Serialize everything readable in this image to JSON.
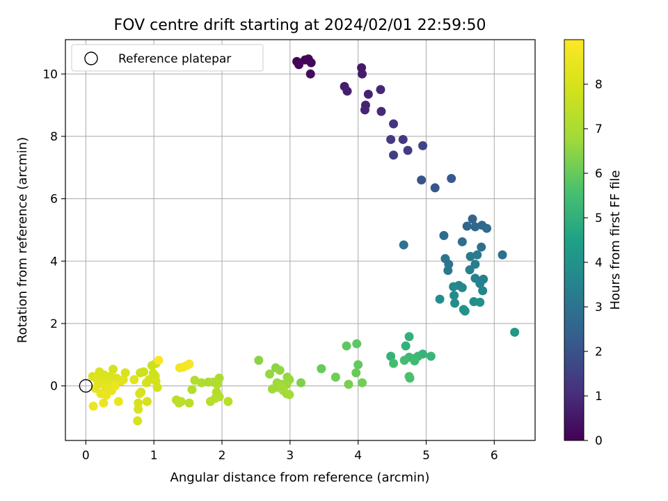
{
  "chart_data": {
    "type": "scatter",
    "title": "FOV centre drift starting at 2024/02/01 22:59:50",
    "xlabel": "Angular distance from reference (arcmin)",
    "ylabel": "Rotation from reference (arcmin)",
    "xlim": [
      -0.3,
      6.6
    ],
    "ylim": [
      -1.75,
      11.1
    ],
    "xticks": [
      0,
      1,
      2,
      3,
      4,
      5,
      6
    ],
    "yticks": [
      0,
      2,
      4,
      6,
      8,
      10
    ],
    "grid": true,
    "legend": {
      "placement": "upper-left",
      "entries": [
        "Reference platepar"
      ]
    },
    "reference_point": {
      "x": 0,
      "y": 0
    },
    "colorbar": {
      "label": "Hours from first FF file",
      "range": [
        0,
        9.0
      ],
      "ticks": [
        0,
        1,
        2,
        3,
        4,
        5,
        6,
        7,
        8
      ],
      "colormap": "viridis"
    },
    "points": [
      {
        "x": 3.1,
        "y": 10.4,
        "h": 0.05
      },
      {
        "x": 3.13,
        "y": 10.3,
        "h": 0.08
      },
      {
        "x": 3.22,
        "y": 10.45,
        "h": 0.1
      },
      {
        "x": 3.27,
        "y": 10.48,
        "h": 0.12
      },
      {
        "x": 3.31,
        "y": 10.36,
        "h": 0.15
      },
      {
        "x": 3.3,
        "y": 10.0,
        "h": 0.2
      },
      {
        "x": 4.05,
        "y": 10.2,
        "h": 0.55
      },
      {
        "x": 4.06,
        "y": 10.0,
        "h": 0.6
      },
      {
        "x": 3.8,
        "y": 9.6,
        "h": 0.65
      },
      {
        "x": 3.84,
        "y": 9.45,
        "h": 0.7
      },
      {
        "x": 4.15,
        "y": 9.35,
        "h": 0.75
      },
      {
        "x": 4.11,
        "y": 9.0,
        "h": 0.8
      },
      {
        "x": 4.1,
        "y": 8.85,
        "h": 0.85
      },
      {
        "x": 4.33,
        "y": 9.5,
        "h": 0.9
      },
      {
        "x": 4.34,
        "y": 8.8,
        "h": 0.95
      },
      {
        "x": 4.52,
        "y": 8.4,
        "h": 1.2
      },
      {
        "x": 4.66,
        "y": 7.9,
        "h": 1.3
      },
      {
        "x": 4.48,
        "y": 7.9,
        "h": 1.35
      },
      {
        "x": 4.73,
        "y": 7.55,
        "h": 1.4
      },
      {
        "x": 4.52,
        "y": 7.4,
        "h": 1.5
      },
      {
        "x": 4.95,
        "y": 7.7,
        "h": 1.6
      },
      {
        "x": 4.93,
        "y": 6.6,
        "h": 2.0
      },
      {
        "x": 5.13,
        "y": 6.35,
        "h": 2.1
      },
      {
        "x": 5.37,
        "y": 6.65,
        "h": 2.2
      },
      {
        "x": 5.68,
        "y": 5.35,
        "h": 2.5
      },
      {
        "x": 5.6,
        "y": 5.12,
        "h": 2.55
      },
      {
        "x": 5.72,
        "y": 5.1,
        "h": 2.6
      },
      {
        "x": 5.82,
        "y": 5.15,
        "h": 2.65
      },
      {
        "x": 5.89,
        "y": 5.05,
        "h": 2.7
      },
      {
        "x": 5.26,
        "y": 4.82,
        "h": 2.75
      },
      {
        "x": 5.53,
        "y": 4.62,
        "h": 2.8
      },
      {
        "x": 5.81,
        "y": 4.45,
        "h": 2.85
      },
      {
        "x": 6.12,
        "y": 4.2,
        "h": 2.9
      },
      {
        "x": 4.67,
        "y": 4.52,
        "h": 2.95
      },
      {
        "x": 5.28,
        "y": 4.08,
        "h": 3.05
      },
      {
        "x": 5.33,
        "y": 3.9,
        "h": 3.1
      },
      {
        "x": 5.32,
        "y": 3.7,
        "h": 3.15
      },
      {
        "x": 5.65,
        "y": 4.15,
        "h": 3.2
      },
      {
        "x": 5.75,
        "y": 4.2,
        "h": 3.25
      },
      {
        "x": 5.72,
        "y": 3.9,
        "h": 3.3
      },
      {
        "x": 5.64,
        "y": 3.72,
        "h": 3.35
      },
      {
        "x": 5.72,
        "y": 3.45,
        "h": 3.4
      },
      {
        "x": 5.84,
        "y": 3.42,
        "h": 3.45
      },
      {
        "x": 5.79,
        "y": 3.28,
        "h": 3.5
      },
      {
        "x": 5.83,
        "y": 3.05,
        "h": 3.55
      },
      {
        "x": 5.48,
        "y": 3.22,
        "h": 3.6
      },
      {
        "x": 5.53,
        "y": 3.15,
        "h": 3.65
      },
      {
        "x": 5.4,
        "y": 3.18,
        "h": 3.7
      },
      {
        "x": 5.41,
        "y": 2.9,
        "h": 3.75
      },
      {
        "x": 5.2,
        "y": 2.78,
        "h": 3.8
      },
      {
        "x": 5.42,
        "y": 2.65,
        "h": 3.85
      },
      {
        "x": 5.7,
        "y": 2.7,
        "h": 3.9
      },
      {
        "x": 5.79,
        "y": 2.68,
        "h": 3.95
      },
      {
        "x": 5.57,
        "y": 2.4,
        "h": 4.0
      },
      {
        "x": 5.55,
        "y": 2.45,
        "h": 4.05
      },
      {
        "x": 6.3,
        "y": 1.72,
        "h": 4.2
      },
      {
        "x": 4.75,
        "y": 1.58,
        "h": 5.0
      },
      {
        "x": 4.7,
        "y": 1.28,
        "h": 5.05
      },
      {
        "x": 4.48,
        "y": 0.95,
        "h": 5.1
      },
      {
        "x": 4.95,
        "y": 1.02,
        "h": 5.15
      },
      {
        "x": 5.07,
        "y": 0.95,
        "h": 5.2
      },
      {
        "x": 4.88,
        "y": 0.95,
        "h": 5.25
      },
      {
        "x": 4.83,
        "y": 0.88,
        "h": 5.3
      },
      {
        "x": 4.75,
        "y": 0.92,
        "h": 5.35
      },
      {
        "x": 4.83,
        "y": 0.8,
        "h": 5.4
      },
      {
        "x": 4.68,
        "y": 0.82,
        "h": 5.45
      },
      {
        "x": 4.52,
        "y": 0.72,
        "h": 5.5
      },
      {
        "x": 4.75,
        "y": 0.3,
        "h": 5.55
      },
      {
        "x": 4.76,
        "y": 0.25,
        "h": 5.6
      },
      {
        "x": 3.98,
        "y": 1.35,
        "h": 5.85
      },
      {
        "x": 3.83,
        "y": 1.28,
        "h": 5.9
      },
      {
        "x": 4.0,
        "y": 0.68,
        "h": 5.95
      },
      {
        "x": 3.46,
        "y": 0.55,
        "h": 6.0
      },
      {
        "x": 3.97,
        "y": 0.42,
        "h": 6.05
      },
      {
        "x": 3.67,
        "y": 0.28,
        "h": 6.1
      },
      {
        "x": 4.06,
        "y": 0.1,
        "h": 6.15
      },
      {
        "x": 3.86,
        "y": 0.05,
        "h": 6.2
      },
      {
        "x": 3.16,
        "y": 0.1,
        "h": 6.3
      },
      {
        "x": 2.54,
        "y": 0.82,
        "h": 6.45
      },
      {
        "x": 2.79,
        "y": 0.58,
        "h": 6.5
      },
      {
        "x": 2.85,
        "y": 0.5,
        "h": 6.55
      },
      {
        "x": 2.7,
        "y": 0.38,
        "h": 6.6
      },
      {
        "x": 2.96,
        "y": 0.28,
        "h": 6.62
      },
      {
        "x": 2.99,
        "y": 0.2,
        "h": 6.65
      },
      {
        "x": 2.88,
        "y": 0.05,
        "h": 6.68
      },
      {
        "x": 2.81,
        "y": 0.1,
        "h": 6.7
      },
      {
        "x": 2.95,
        "y": 0.05,
        "h": 6.72
      },
      {
        "x": 2.82,
        "y": -0.05,
        "h": 6.75
      },
      {
        "x": 2.74,
        "y": -0.1,
        "h": 6.78
      },
      {
        "x": 2.9,
        "y": -0.15,
        "h": 6.8
      },
      {
        "x": 2.95,
        "y": -0.25,
        "h": 6.82
      },
      {
        "x": 2.99,
        "y": -0.28,
        "h": 6.85
      },
      {
        "x": 2.88,
        "y": -0.05,
        "h": 6.87
      },
      {
        "x": 1.96,
        "y": 0.25,
        "h": 7.0
      },
      {
        "x": 1.8,
        "y": 0.12,
        "h": 7.05
      },
      {
        "x": 1.87,
        "y": 0.12,
        "h": 7.08
      },
      {
        "x": 1.7,
        "y": 0.1,
        "h": 7.1
      },
      {
        "x": 1.6,
        "y": 0.18,
        "h": 7.12
      },
      {
        "x": 1.93,
        "y": 0.05,
        "h": 7.15
      },
      {
        "x": 1.92,
        "y": -0.2,
        "h": 7.18
      },
      {
        "x": 1.56,
        "y": -0.12,
        "h": 7.2
      },
      {
        "x": 1.96,
        "y": -0.35,
        "h": 7.22
      },
      {
        "x": 1.83,
        "y": -0.5,
        "h": 7.25
      },
      {
        "x": 1.9,
        "y": -0.4,
        "h": 7.28
      },
      {
        "x": 2.09,
        "y": -0.5,
        "h": 7.3
      },
      {
        "x": 1.52,
        "y": -0.55,
        "h": 7.32
      },
      {
        "x": 1.4,
        "y": -0.5,
        "h": 7.35
      },
      {
        "x": 1.33,
        "y": -0.45,
        "h": 7.38
      },
      {
        "x": 1.37,
        "y": -0.55,
        "h": 7.4
      },
      {
        "x": 1.03,
        "y": 0.72,
        "h": 7.7
      },
      {
        "x": 0.97,
        "y": 0.65,
        "h": 7.72
      },
      {
        "x": 0.85,
        "y": 0.45,
        "h": 7.75
      },
      {
        "x": 0.8,
        "y": 0.42,
        "h": 7.78
      },
      {
        "x": 0.99,
        "y": 0.4,
        "h": 7.8
      },
      {
        "x": 1.02,
        "y": 0.32,
        "h": 7.82
      },
      {
        "x": 0.93,
        "y": 0.2,
        "h": 7.85
      },
      {
        "x": 1.03,
        "y": 0.15,
        "h": 7.88
      },
      {
        "x": 0.89,
        "y": 0.1,
        "h": 7.9
      },
      {
        "x": 1.05,
        "y": -0.05,
        "h": 7.92
      },
      {
        "x": 0.81,
        "y": -0.2,
        "h": 7.95
      },
      {
        "x": 0.9,
        "y": -0.5,
        "h": 7.97
      },
      {
        "x": 0.77,
        "y": -0.55,
        "h": 7.99
      },
      {
        "x": 0.77,
        "y": -0.75,
        "h": 8.01
      },
      {
        "x": 0.76,
        "y": -1.12,
        "h": 8.03
      },
      {
        "x": 0.79,
        "y": -0.25,
        "h": 8.05
      },
      {
        "x": 0.4,
        "y": 0.53,
        "h": 7.95
      },
      {
        "x": 0.58,
        "y": 0.42,
        "h": 8.0
      },
      {
        "x": 0.2,
        "y": 0.45,
        "h": 8.05
      },
      {
        "x": 0.27,
        "y": 0.35,
        "h": 8.08
      },
      {
        "x": 0.36,
        "y": 0.3,
        "h": 8.1
      },
      {
        "x": 0.1,
        "y": 0.3,
        "h": 8.12
      },
      {
        "x": 0.45,
        "y": 0.25,
        "h": 8.15
      },
      {
        "x": 0.55,
        "y": 0.2,
        "h": 8.18
      },
      {
        "x": 0.16,
        "y": 0.22,
        "h": 8.2
      },
      {
        "x": 0.25,
        "y": 0.15,
        "h": 8.22
      },
      {
        "x": 0.32,
        "y": 0.1,
        "h": 8.25
      },
      {
        "x": 0.71,
        "y": 0.2,
        "h": 8.28
      },
      {
        "x": 0.43,
        "y": 0.05,
        "h": 8.3
      },
      {
        "x": 0.52,
        "y": 0.15,
        "h": 8.32
      },
      {
        "x": 0.18,
        "y": 0.05,
        "h": 8.35
      },
      {
        "x": 0.29,
        "y": -0.05,
        "h": 8.38
      },
      {
        "x": 0.14,
        "y": -0.08,
        "h": 8.4
      },
      {
        "x": 0.38,
        "y": -0.15,
        "h": 8.42
      },
      {
        "x": 0.22,
        "y": -0.25,
        "h": 8.45
      },
      {
        "x": 0.3,
        "y": -0.3,
        "h": 8.48
      },
      {
        "x": 0.48,
        "y": -0.5,
        "h": 8.5
      },
      {
        "x": 0.26,
        "y": -0.55,
        "h": 8.52
      },
      {
        "x": 0.11,
        "y": -0.65,
        "h": 8.55
      },
      {
        "x": 0.43,
        "y": 0.0,
        "h": 8.56
      },
      {
        "x": 1.38,
        "y": 0.58,
        "h": 8.7
      },
      {
        "x": 1.43,
        "y": 0.6,
        "h": 8.75
      },
      {
        "x": 1.48,
        "y": 0.65,
        "h": 8.8
      },
      {
        "x": 1.52,
        "y": 0.7,
        "h": 8.85
      },
      {
        "x": 1.07,
        "y": 0.82,
        "h": 8.9
      }
    ]
  }
}
